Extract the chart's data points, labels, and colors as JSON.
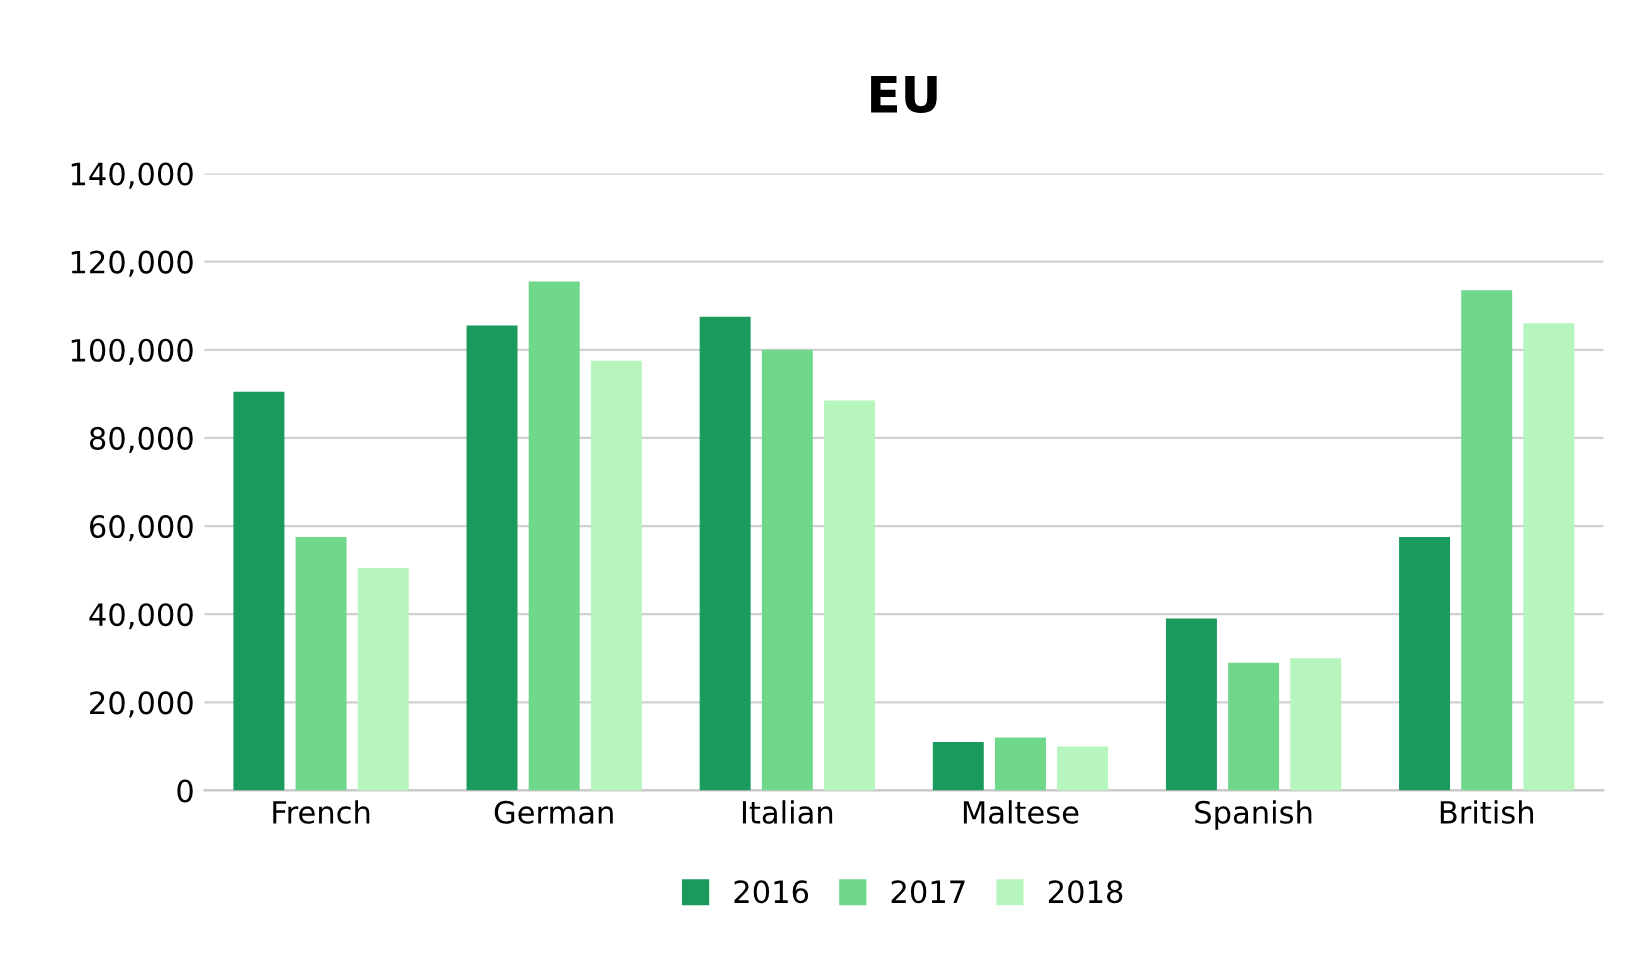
{
  "chart_data": {
    "type": "bar",
    "title": "EU",
    "categories": [
      "French",
      "German",
      "Italian",
      "Maltese",
      "Spanish",
      "British"
    ],
    "series": [
      {
        "name": "2016",
        "color": "#1a9a5c",
        "values": [
          90500,
          105500,
          107500,
          11000,
          39000,
          57500
        ]
      },
      {
        "name": "2017",
        "color": "#6fd88a",
        "values": [
          57500,
          115500,
          100000,
          12000,
          29000,
          113500
        ]
      },
      {
        "name": "2018",
        "color": "#b6f5bd",
        "values": [
          50500,
          97500,
          88500,
          10000,
          30000,
          106000
        ]
      }
    ],
    "ylim": [
      0,
      140000
    ],
    "yticks": [
      {
        "value": 0,
        "label": "0"
      },
      {
        "value": 20000,
        "label": "20,000"
      },
      {
        "value": 40000,
        "label": "40,000"
      },
      {
        "value": 60000,
        "label": "60,000"
      },
      {
        "value": 80000,
        "label": "80,000"
      },
      {
        "value": 100000,
        "label": "100,000"
      },
      {
        "value": 120000,
        "label": "120,000"
      },
      {
        "value": 140000,
        "label": "140,000"
      }
    ],
    "grid": "y",
    "legend": "bottom"
  }
}
